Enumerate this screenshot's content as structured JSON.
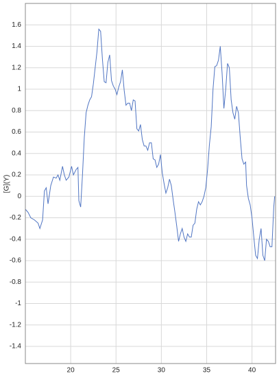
{
  "chart_data": {
    "type": "line",
    "ylabel": "[G](Y)",
    "x": [
      15.0,
      15.3,
      15.6,
      16.0,
      16.4,
      16.6,
      16.9,
      17.1,
      17.3,
      17.5,
      17.8,
      18.1,
      18.4,
      18.6,
      18.8,
      19.1,
      19.3,
      19.5,
      19.8,
      20.1,
      20.3,
      20.6,
      20.8,
      20.9,
      21.1,
      21.3,
      21.5,
      21.7,
      21.9,
      22.1,
      22.3,
      22.5,
      22.7,
      22.9,
      23.1,
      23.3,
      23.5,
      23.7,
      23.9,
      24.1,
      24.3,
      24.5,
      24.7,
      24.9,
      25.1,
      25.3,
      25.5,
      25.7,
      25.9,
      26.1,
      26.3,
      26.5,
      26.7,
      26.9,
      27.1,
      27.3,
      27.5,
      27.7,
      27.9,
      28.1,
      28.3,
      28.5,
      28.7,
      28.9,
      29.1,
      29.3,
      29.5,
      29.7,
      29.9,
      30.1,
      30.3,
      30.5,
      30.7,
      30.9,
      31.1,
      31.3,
      31.5,
      31.7,
      31.9,
      32.1,
      32.3,
      32.5,
      32.7,
      32.9,
      33.1,
      33.3,
      33.5,
      33.7,
      33.9,
      34.1,
      34.3,
      34.5,
      34.7,
      34.9,
      35.1,
      35.3,
      35.5,
      35.7,
      35.9,
      36.1,
      36.3,
      36.5,
      36.7,
      36.9,
      37.1,
      37.3,
      37.5,
      37.7,
      37.9,
      38.1,
      38.3,
      38.5,
      38.7,
      38.9,
      39.1,
      39.3,
      39.4,
      39.6,
      39.8,
      40.0,
      40.2,
      40.4,
      40.6,
      40.8,
      41.0,
      41.2,
      41.4,
      41.6,
      41.8,
      42.0,
      42.2,
      42.4,
      42.5
    ],
    "series": [
      {
        "color": "#4f74c2",
        "values": [
          -0.12,
          -0.15,
          -0.2,
          -0.22,
          -0.25,
          -0.3,
          -0.22,
          0.05,
          0.08,
          -0.07,
          0.1,
          0.18,
          0.17,
          0.2,
          0.15,
          0.28,
          0.2,
          0.15,
          0.18,
          0.28,
          0.2,
          0.25,
          0.27,
          -0.04,
          -0.1,
          0.2,
          0.55,
          0.78,
          0.85,
          0.9,
          0.93,
          1.05,
          1.2,
          1.35,
          1.56,
          1.54,
          1.28,
          1.07,
          1.06,
          1.25,
          1.32,
          1.08,
          1.03,
          1.0,
          0.95,
          1.02,
          1.07,
          1.18,
          0.99,
          0.85,
          0.87,
          0.87,
          0.8,
          0.9,
          0.89,
          0.63,
          0.61,
          0.67,
          0.53,
          0.47,
          0.47,
          0.43,
          0.5,
          0.5,
          0.35,
          0.34,
          0.27,
          0.3,
          0.39,
          0.22,
          0.12,
          0.03,
          0.08,
          0.16,
          0.1,
          -0.03,
          -0.15,
          -0.28,
          -0.42,
          -0.35,
          -0.3,
          -0.38,
          -0.42,
          -0.35,
          -0.38,
          -0.38,
          -0.27,
          -0.25,
          -0.12,
          -0.05,
          -0.08,
          -0.05,
          0.0,
          0.08,
          0.25,
          0.48,
          0.65,
          1.0,
          1.21,
          1.22,
          1.27,
          1.4,
          1.15,
          0.82,
          1.0,
          1.24,
          1.2,
          0.9,
          0.78,
          0.72,
          0.84,
          0.78,
          0.55,
          0.35,
          0.3,
          0.32,
          0.1,
          -0.02,
          -0.08,
          -0.2,
          -0.38,
          -0.55,
          -0.58,
          -0.4,
          -0.3,
          -0.55,
          -0.6,
          -0.4,
          -0.42,
          -0.47,
          -0.47,
          -0.1,
          0.0
        ]
      }
    ],
    "xlim": [
      15.0,
      42.6
    ],
    "ylim": [
      -1.56,
      1.8
    ],
    "xticks": [
      20,
      25,
      30,
      35,
      40
    ],
    "yticks": [
      -1.4,
      -1.2,
      -1,
      -0.8,
      -0.6,
      -0.4,
      -0.2,
      0,
      0.2,
      0.4,
      0.6,
      0.8,
      1,
      1.2,
      1.4,
      1.6
    ],
    "grid": true
  }
}
